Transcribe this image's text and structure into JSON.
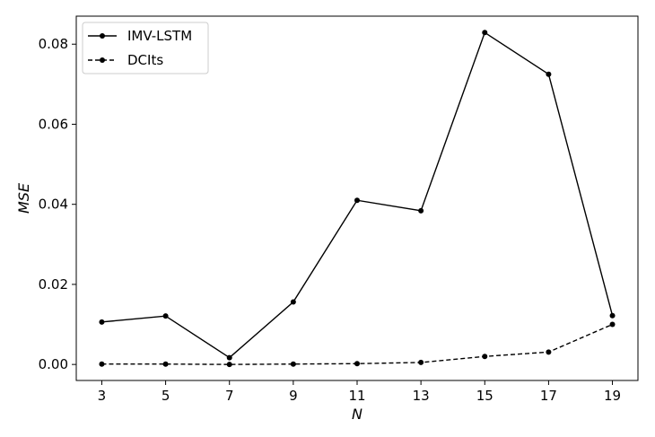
{
  "chart_data": {
    "type": "line",
    "title": "",
    "xlabel": "N",
    "ylabel": "MSE",
    "x": [
      3,
      5,
      7,
      9,
      11,
      13,
      15,
      17,
      19
    ],
    "xticks": [
      "3",
      "5",
      "7",
      "9",
      "11",
      "13",
      "15",
      "17",
      "19"
    ],
    "xlim": [
      2.2,
      19.8
    ],
    "yticks": [
      "0.00",
      "0.02",
      "0.04",
      "0.06",
      "0.08"
    ],
    "ytick_values": [
      0.0,
      0.02,
      0.04,
      0.06,
      0.08
    ],
    "ylim": [
      -0.004,
      0.087
    ],
    "grid": false,
    "legend_position": "top-left",
    "series": [
      {
        "name": "IMV-LSTM",
        "line_style": "solid",
        "color": "#000000",
        "values": [
          0.0106,
          0.0121,
          0.0017,
          0.0156,
          0.041,
          0.0384,
          0.0829,
          0.0725,
          0.0122
        ]
      },
      {
        "name": "DCIts",
        "line_style": "dashed",
        "color": "#000000",
        "values": [
          0.0001,
          0.0001,
          0.0,
          0.0001,
          0.0002,
          0.0005,
          0.002,
          0.0031,
          0.01
        ]
      }
    ]
  }
}
